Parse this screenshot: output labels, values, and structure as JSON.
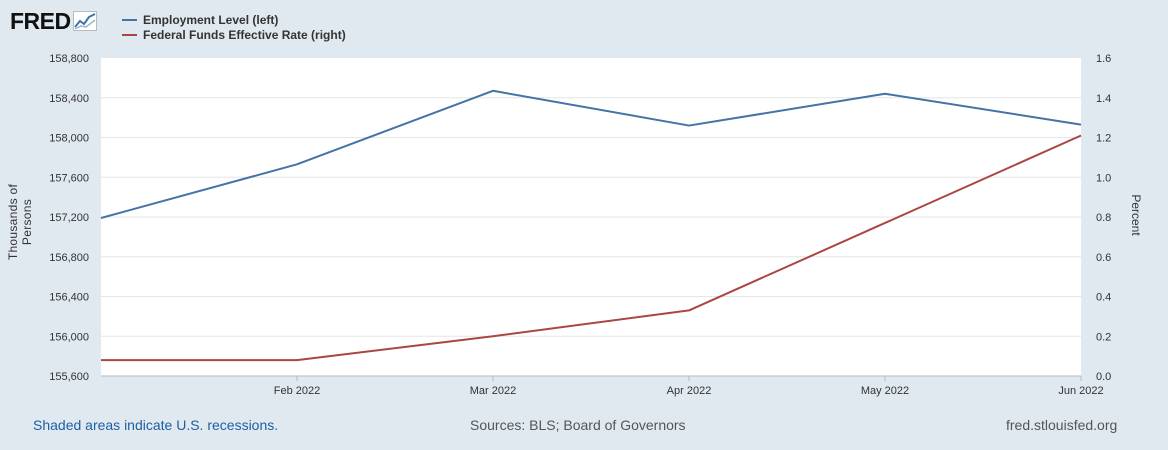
{
  "header": {
    "logo_text": "FRED",
    "logo_icon": "line-chart-icon"
  },
  "legend": [
    {
      "label": "Employment Level (left)",
      "color": "#4572a7"
    },
    {
      "label": "Federal Funds Effective Rate (right)",
      "color": "#aa4643"
    }
  ],
  "axes": {
    "left_label": "Thousands of Persons",
    "right_label": "Percent"
  },
  "footer": {
    "recessions": "Shaded areas indicate U.S. recessions.",
    "sources": "Sources: BLS; Board of Governors",
    "site": "fred.stlouisfed.org"
  },
  "chart_data": {
    "type": "line",
    "x": [
      "2022-01",
      "2022-02",
      "2022-03",
      "2022-04",
      "2022-05",
      "2022-06"
    ],
    "x_tick_labels": [
      "Feb 2022",
      "Mar 2022",
      "Apr 2022",
      "May 2022",
      "Jun 2022"
    ],
    "series": [
      {
        "name": "Employment Level (left)",
        "axis": "left",
        "color": "#4572a7",
        "values": [
          157190,
          157730,
          158470,
          158120,
          158440,
          158130
        ]
      },
      {
        "name": "Federal Funds Effective Rate (right)",
        "axis": "right",
        "color": "#aa4643",
        "values": [
          0.08,
          0.08,
          0.2,
          0.33,
          0.77,
          1.21
        ]
      }
    ],
    "ylabel_left": "Thousands of Persons",
    "ylabel_right": "Percent",
    "ylim_left": [
      155600,
      158800
    ],
    "ylim_right": [
      0,
      1.6
    ],
    "yticks_left": [
      "155,600",
      "156,000",
      "156,400",
      "156,800",
      "157,200",
      "157,600",
      "158,000",
      "158,400",
      "158,800"
    ],
    "yticks_right": [
      "0.0",
      "0.2",
      "0.4",
      "0.6",
      "0.8",
      "1.0",
      "1.2",
      "1.4",
      "1.6"
    ],
    "grid": true
  }
}
